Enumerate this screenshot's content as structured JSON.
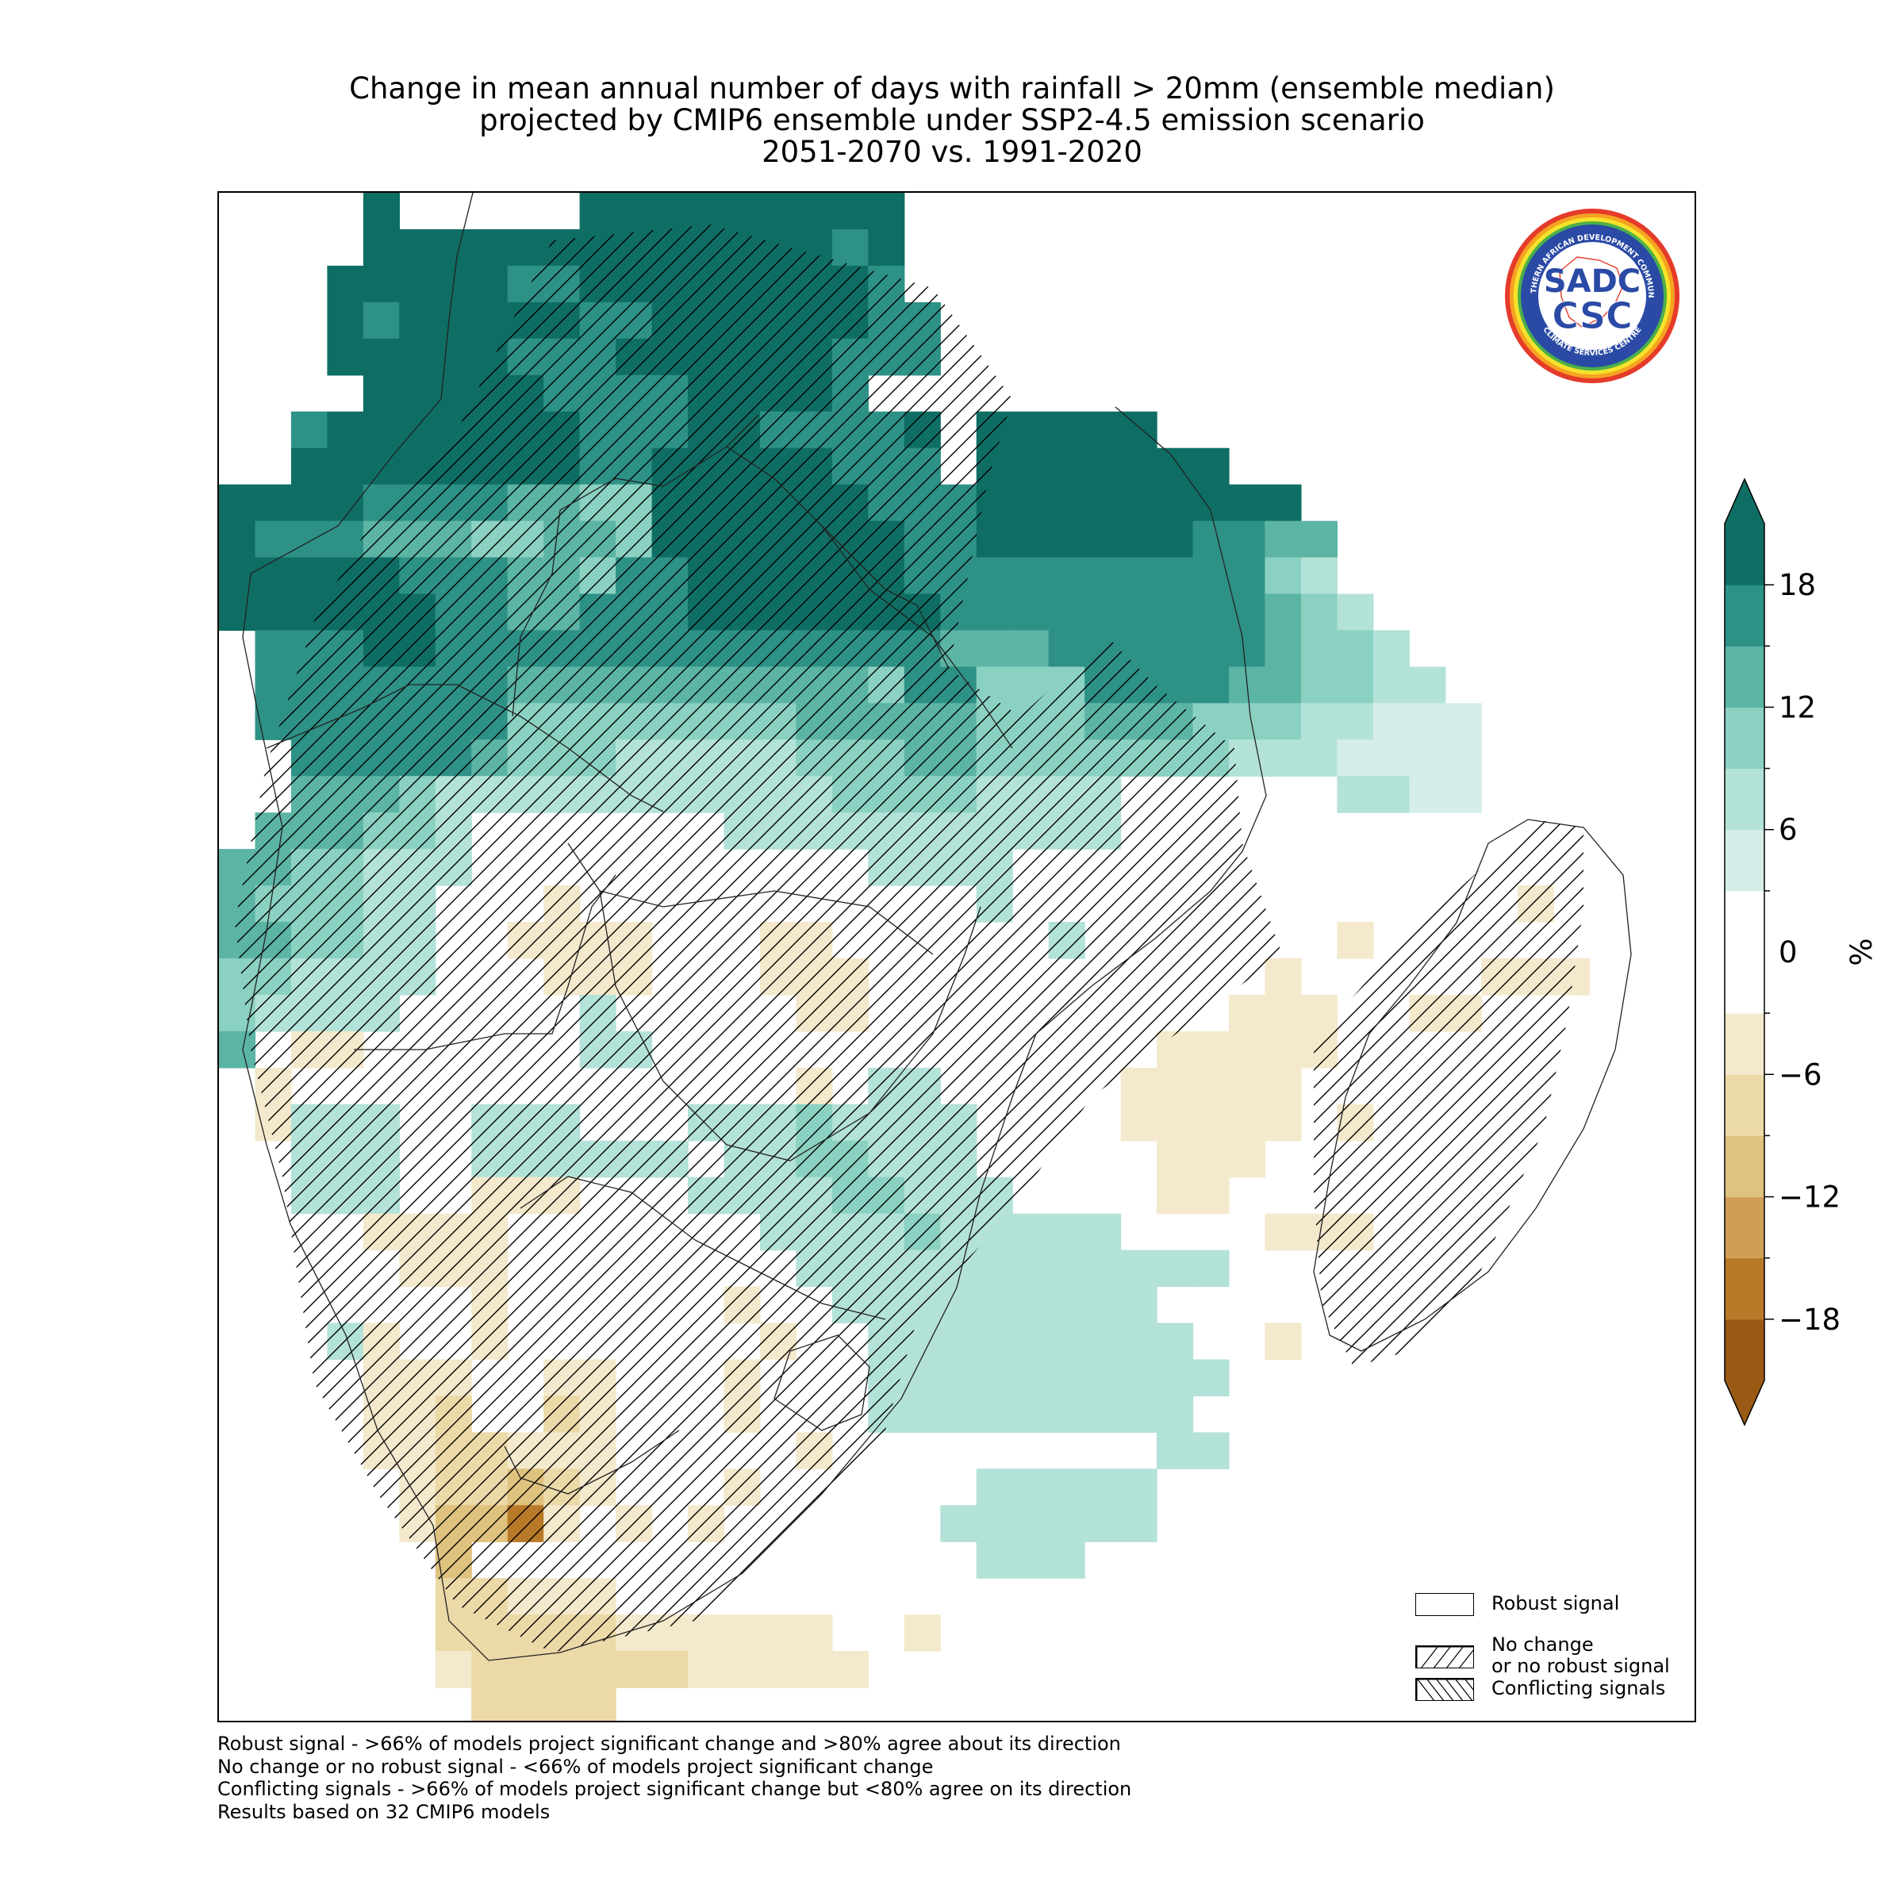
{
  "title": {
    "line1": "Change in mean annual number of days with rainfall > 20mm (ensemble median)",
    "line2": "projected by CMIP6 ensemble under SSP2-4.5 emission scenario",
    "line3": "2051-2070 vs. 1991-2020"
  },
  "colorbar": {
    "unit": "%",
    "tick_labels": [
      "18",
      "12",
      "6",
      "0",
      "−6",
      "−12",
      "−18"
    ],
    "tick_values": [
      18,
      12,
      6,
      0,
      -6,
      -12,
      -18
    ],
    "range": [
      -21,
      21
    ],
    "bin_edges": [
      -21,
      -18,
      -15,
      -12,
      -9,
      -6,
      -3,
      3,
      6,
      9,
      12,
      15,
      18,
      21
    ],
    "colors": [
      "#9b5a14",
      "#b87a28",
      "#cf9f55",
      "#e0c27f",
      "#ecd9a8",
      "#f4e9cc",
      "#ffffff",
      "#d5eee9",
      "#b3e2d8",
      "#8bd1c2",
      "#5cb4a5",
      "#2e9186",
      "#0f6e63"
    ],
    "extend": "both"
  },
  "legend": {
    "robust": "Robust signal",
    "no_change_line1": "No change",
    "no_change_line2": "or no robust signal",
    "conflicting": "Conflicting signals"
  },
  "notes": [
    "Robust signal - >66% of models project significant change and >80% agree about its direction",
    "No change or no robust signal - <66% of models project significant change",
    "Conflicting signals - >66% of models project significant change but <80% agree on its direction",
    "Results based on 32 CMIP6 models"
  ],
  "logo": {
    "text_top": "SOUTHERN AFRICAN DEVELOPMENT COMMUNITY",
    "text_bottom": "CLIMATE SERVICES CENTRE",
    "mark_upper": "SADC",
    "mark_lower": "CSC"
  },
  "map": {
    "region": "Southern Africa and Madagascar",
    "hatching": "most of the southern and eastern mainland and Madagascar show 'No change or no robust signal' hatching",
    "colors": {
      "frame": "#000000",
      "borders": "#222222"
    }
  }
}
